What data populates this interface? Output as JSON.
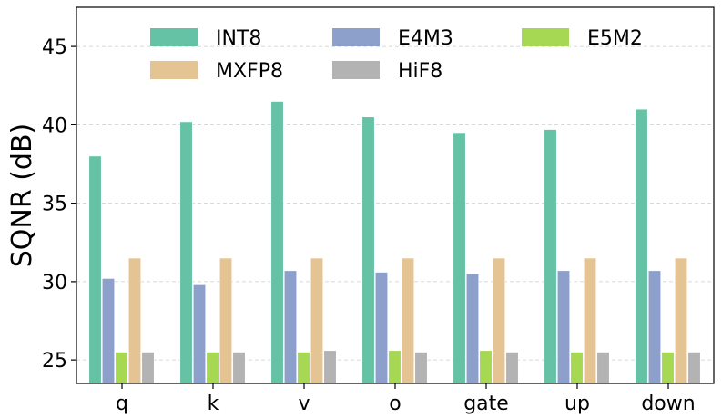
{
  "chart_data": {
    "type": "bar",
    "title": "",
    "xlabel": "",
    "ylabel": "SQNR (dB)",
    "ylim": [
      23.5,
      47.5
    ],
    "yticks": [
      25,
      30,
      35,
      40,
      45
    ],
    "grid": true,
    "legend_position": "top",
    "categories": [
      "q",
      "k",
      "v",
      "o",
      "gate",
      "up",
      "down"
    ],
    "series": [
      {
        "name": "INT8",
        "color": "#66c2a5",
        "values": [
          38.0,
          40.2,
          41.5,
          40.5,
          39.5,
          39.7,
          41.0
        ]
      },
      {
        "name": "E4M3",
        "color": "#8da0cb",
        "values": [
          30.2,
          29.8,
          30.7,
          30.6,
          30.5,
          30.7,
          30.7
        ]
      },
      {
        "name": "E5M2",
        "color": "#a6d854",
        "values": [
          25.5,
          25.5,
          25.5,
          25.6,
          25.6,
          25.5,
          25.5
        ]
      },
      {
        "name": "MXFP8",
        "color": "#e5c494",
        "values": [
          31.5,
          31.5,
          31.5,
          31.5,
          31.5,
          31.5,
          31.5
        ]
      },
      {
        "name": "HiF8",
        "color": "#b3b3b3",
        "values": [
          25.5,
          25.5,
          25.6,
          25.5,
          25.5,
          25.5,
          25.5
        ]
      }
    ]
  }
}
